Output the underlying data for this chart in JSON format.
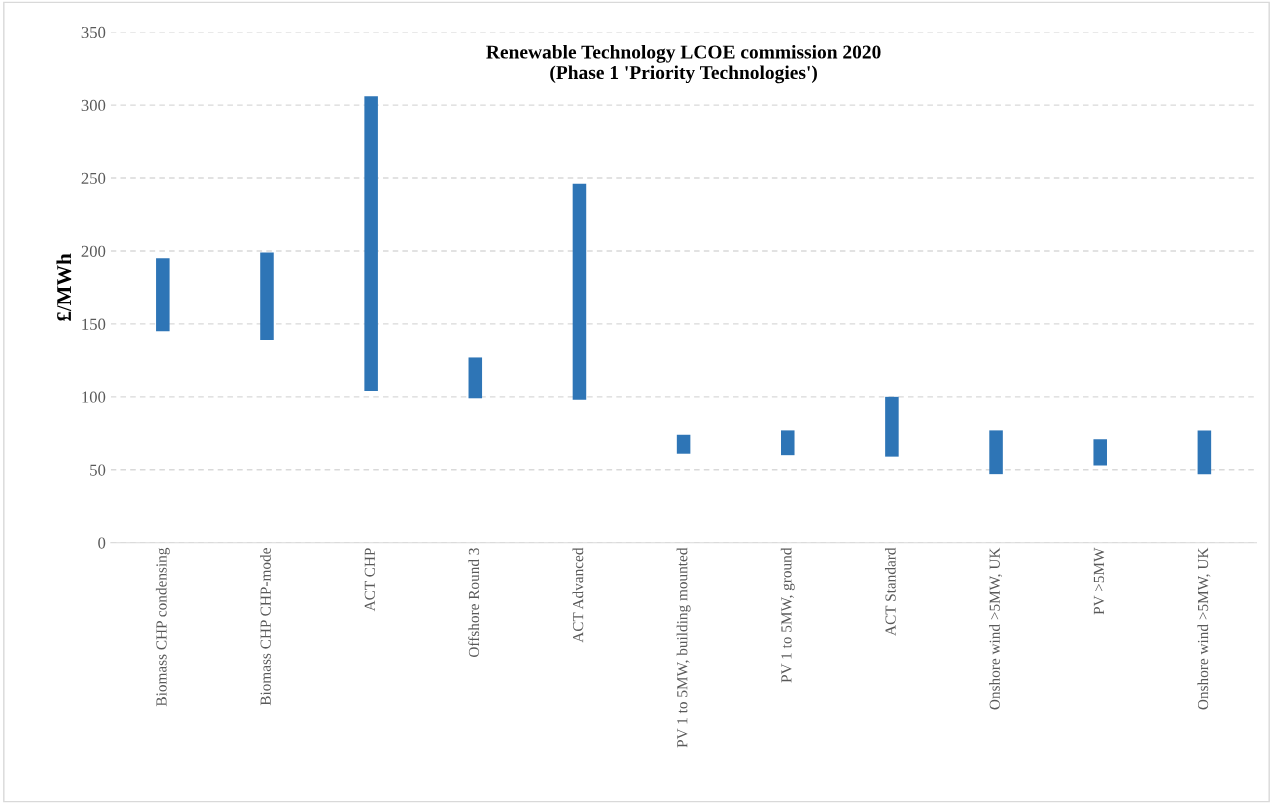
{
  "chart_data": {
    "type": "bar",
    "title": "Renewable Technology LCOE commission 2020\n(Phase 1 'Priority Technologies')",
    "ylabel": "£/MWh",
    "categories": [
      "Biomass CHP condensing",
      "Biomass CHP CHP-mode",
      "ACT CHP",
      "Offshore Round 3",
      "ACT Advanced",
      "PV 1 to 5MW, building mounted",
      "PV 1 to 5MW, ground",
      "ACT Standard",
      "Onshore wind >5MW, UK",
      "PV >5MW",
      "Onshore wind >5MW, UK"
    ],
    "base": [
      145,
      139,
      104,
      99,
      98,
      61,
      60,
      59,
      47,
      53,
      47
    ],
    "values": [
      50,
      60,
      202,
      28,
      148,
      13,
      17,
      41,
      30,
      18,
      30
    ],
    "color": "#2e75b6",
    "ylim": [
      0,
      350
    ],
    "yticks": [
      0,
      50,
      100,
      150,
      200,
      250,
      300,
      350
    ],
    "grid": "y"
  }
}
